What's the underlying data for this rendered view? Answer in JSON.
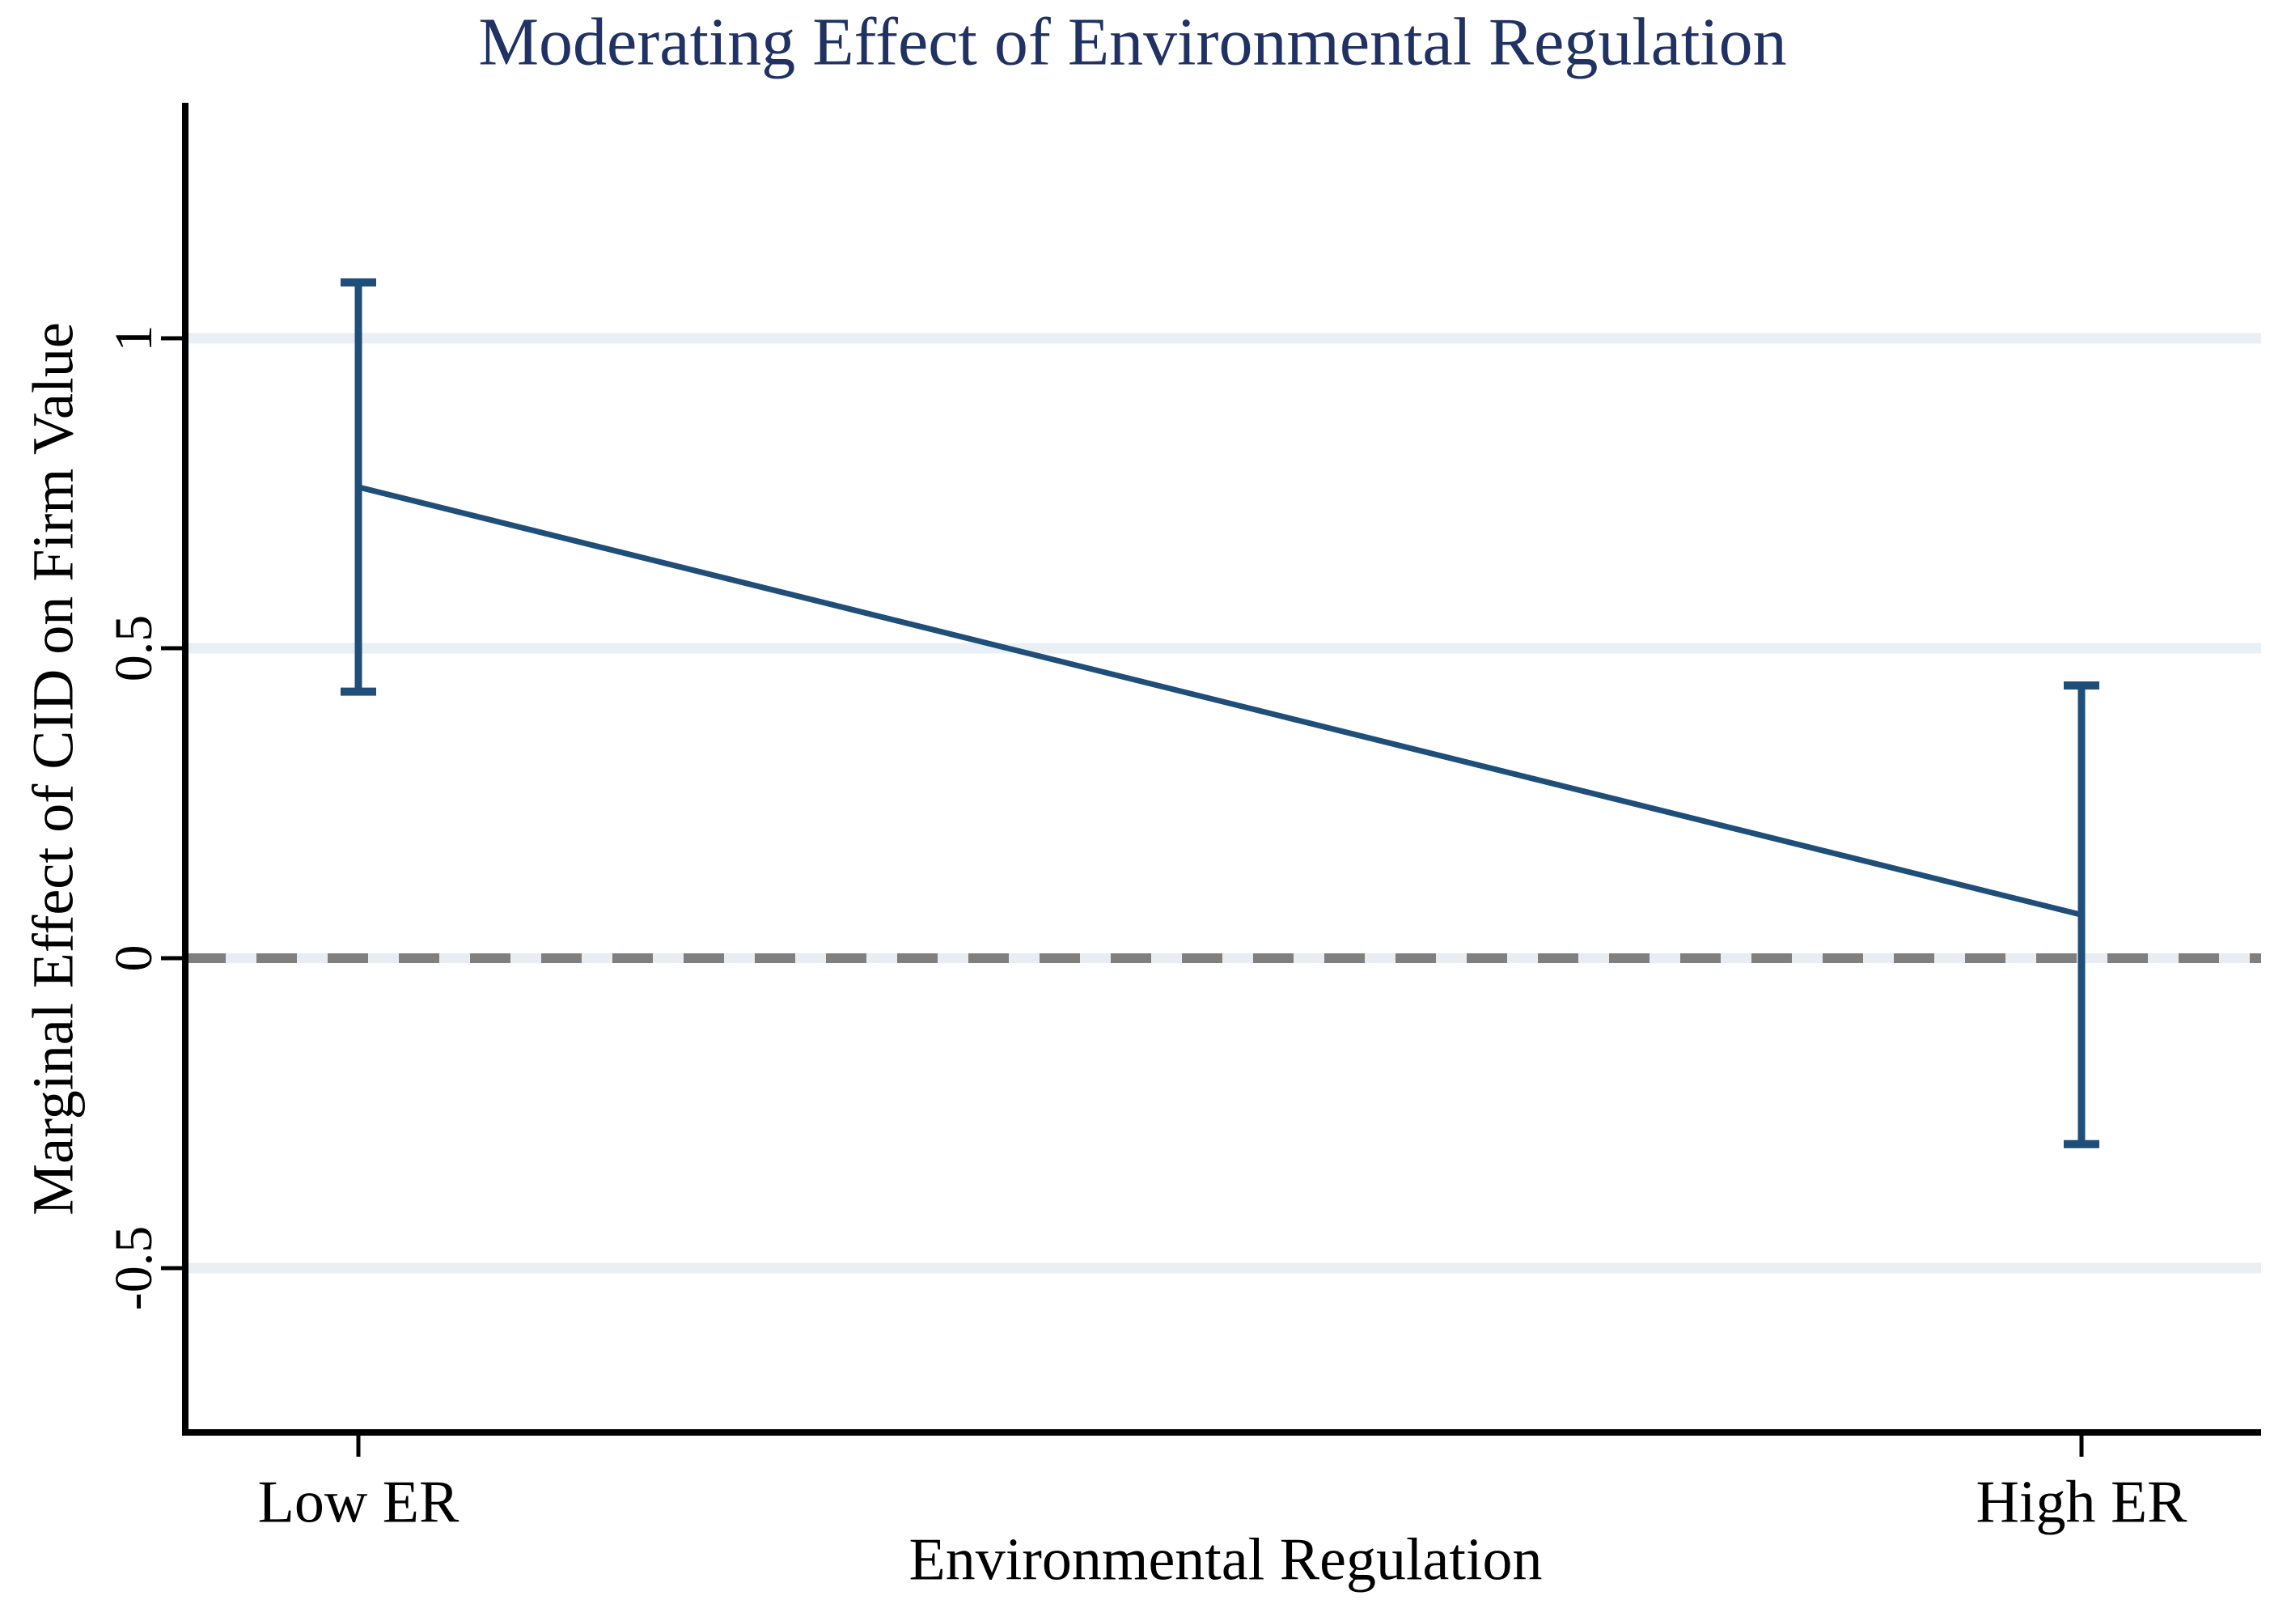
{
  "title": "Moderating Effect of Environmental Regulation",
  "colors": {
    "series_line": "#1F4E79",
    "title_text": "#203263",
    "gridline": "#E8EFF5",
    "zero_line_dash": "#7F7F7F",
    "zero_line_gap": "#E7EDF3",
    "axis": "#000000"
  },
  "chart_data": {
    "type": "line",
    "title": "Moderating Effect of Environmental Regulation",
    "xlabel": "Environmental Regulation",
    "ylabel": "Marginal Effect of CID on Firm Value",
    "categories": [
      "Low ER",
      "High ER"
    ],
    "series": [
      {
        "name": "Marginal effect of CID",
        "values": [
          0.76,
          0.07
        ],
        "ci_low": [
          0.43,
          -0.3
        ],
        "ci_high": [
          1.09,
          0.44
        ]
      }
    ],
    "yticks": [
      1,
      0.5,
      0,
      -0.5
    ],
    "ytick_labels": [
      "1",
      "0.5",
      "0",
      "-0.5"
    ],
    "ylim": [
      -0.77,
      1.38
    ],
    "reference_line_y": 0,
    "reference_line_style": "dashed",
    "grid": true,
    "legend_position": "none"
  }
}
